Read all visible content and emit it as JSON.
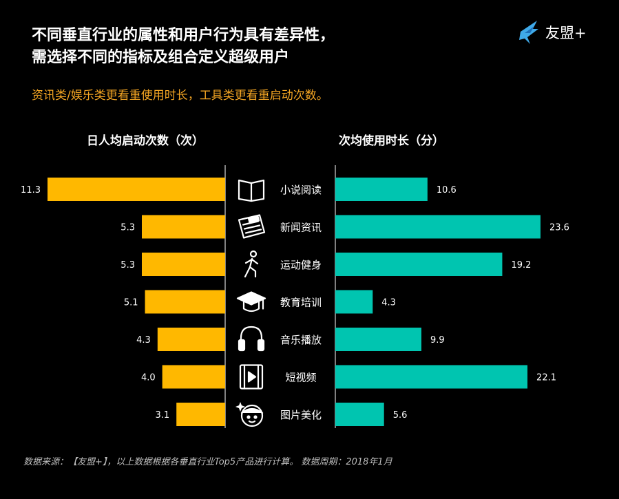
{
  "header": {
    "title_line1": "不同垂直行业的属性和用户行为具有差异性，",
    "title_line2": "需选择不同的指标及组合定义超级用户",
    "subtitle": "资讯类/娱乐类更看重使用时长，工具类更看重启动次数。"
  },
  "logo": {
    "text": "友盟+",
    "color": "#3fa9e8"
  },
  "footer": {
    "source": "数据来源：【友盟+】，以上数据根据各垂直行业Top5产品进行计算。   数据周期：2018年1月"
  },
  "chart_data": [
    {
      "type": "bar",
      "orientation": "horizontal-left",
      "title": "日人均启动次数（次）",
      "categories": [
        "小说阅读",
        "新闻资讯",
        "运动健身",
        "教育培训",
        "音乐播放",
        "短视频",
        "图片美化"
      ],
      "values": [
        11.3,
        5.3,
        5.3,
        5.1,
        4.3,
        4.0,
        3.1
      ],
      "value_labels": [
        "11.3",
        "5.3",
        "5.3",
        "5.1",
        "4.3",
        "4.0",
        "3.1"
      ],
      "xlim": [
        0,
        11.3
      ],
      "color": "#ffb800"
    },
    {
      "type": "bar",
      "orientation": "horizontal-right",
      "title": "次均使用时长（分）",
      "categories": [
        "小说阅读",
        "新闻资讯",
        "运动健身",
        "教育培训",
        "音乐播放",
        "短视频",
        "图片美化"
      ],
      "values": [
        10.6,
        23.6,
        19.2,
        4.3,
        9.9,
        22.1,
        5.6
      ],
      "value_labels": [
        "10.6",
        "23.6",
        "19.2",
        "4.3",
        "9.9",
        "22.1",
        "5.6"
      ],
      "xlim": [
        0,
        23.6
      ],
      "color": "#00c5b0"
    }
  ],
  "categories_icons": [
    "book-icon",
    "newspaper-icon",
    "walking-person-icon",
    "graduation-cap-icon",
    "headphones-icon",
    "video-film-icon",
    "beauty-face-icon"
  ]
}
